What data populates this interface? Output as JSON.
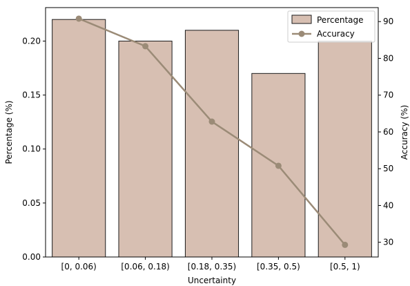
{
  "chart_data": {
    "type": "bar",
    "categories": [
      "[0, 0.06)",
      "[0.06, 0.18)",
      "[0.18, 0.35)",
      "[0.35, 0.5)",
      "[0.5, 1)"
    ],
    "series": [
      {
        "name": "Percentage",
        "type": "bar",
        "axis": "left",
        "values": [
          0.22,
          0.2,
          0.21,
          0.17,
          0.2
        ]
      },
      {
        "name": "Accuracy",
        "type": "line",
        "axis": "right",
        "values": [
          90.8,
          83.3,
          62.8,
          50.8,
          29.3
        ]
      }
    ],
    "xlabel": "Uncertainty",
    "ylabel": "Percentage (%)",
    "y2label": "Accuracy (%)",
    "ylim": [
      0,
      0.231
    ],
    "y2lim": [
      26.0,
      93.8
    ],
    "yticks": [
      "0.00",
      "0.05",
      "0.10",
      "0.15",
      "0.20"
    ],
    "y2ticks": [
      "30",
      "40",
      "50",
      "60",
      "70",
      "80",
      "90"
    ],
    "legend": {
      "position": "top-right",
      "entries": [
        "Percentage",
        "Accuracy"
      ]
    },
    "grid": false,
    "colors": {
      "bar_fill": "#d7bfb2",
      "bar_edge": "#1a1a1a",
      "line": "#9b8b77"
    }
  }
}
